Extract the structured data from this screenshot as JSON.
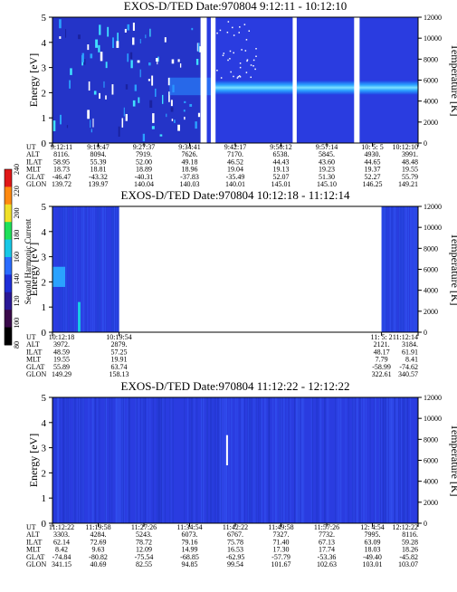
{
  "chart_data": [
    {
      "type": "heatmap",
      "title": "EXOS-D/TED   Date:970804   9:12:11 - 10:12:10",
      "ylabel": "Energy [eV]",
      "y2label": "Temperature [K]",
      "ylim": [
        0,
        5
      ],
      "y2lim": [
        0,
        12000
      ],
      "yticks": [
        "0",
        "1",
        "2",
        "3",
        "4",
        "5"
      ],
      "y2ticks": [
        "0",
        "2000",
        "4000",
        "6000",
        "8000",
        "10000",
        "12000"
      ],
      "gaps": [
        {
          "start": 0.405,
          "end": 0.422
        },
        {
          "start": 0.433,
          "end": 0.446
        },
        {
          "start": 0.657,
          "end": 0.668
        },
        {
          "start": 0.825,
          "end": 0.84
        }
      ],
      "band": {
        "center_energy": 2.2,
        "width_energy": 0.55,
        "start": 0.44
      },
      "row_labels": [
        "UT",
        "ALT",
        "ILAT",
        "MLT",
        "GLAT",
        "GLON"
      ],
      "columns": [
        {
          "values": [
            "9:12:11",
            "8116.",
            "58.95",
            "18.73",
            "-46.47",
            "139.72"
          ]
        },
        {
          "values": [
            "9:19:47",
            "8094.",
            "55.39",
            "18.81",
            "-43.32",
            "139.97"
          ]
        },
        {
          "values": [
            "9:27:37",
            "7919.",
            "52.00",
            "18.89",
            "-40.31",
            "140.04"
          ]
        },
        {
          "values": [
            "9:34:41",
            "7626.",
            "49.18",
            "18.96",
            "-37.83",
            "140.03"
          ]
        },
        {
          "values": [
            "9:42:17",
            "7170.",
            "46.52",
            "19.04",
            "-35.49",
            "140.01"
          ]
        },
        {
          "values": [
            "9:50:12",
            "6538.",
            "44.43",
            "19.13",
            "52.07",
            "145.01"
          ]
        },
        {
          "values": [
            "9:57:14",
            "5845.",
            "43.60",
            "19.23",
            "51.30",
            "145.10"
          ]
        },
        {
          "values": [
            "10: 5: 5",
            "4930.",
            "44.65",
            "19.37",
            "52.27",
            "146.25"
          ]
        },
        {
          "values": [
            "10:12:10",
            "3991.",
            "48.48",
            "19.55",
            "55.79",
            "149.21"
          ]
        }
      ]
    },
    {
      "type": "heatmap",
      "title": "EXOS-D/TED   Date:970804   10:12:18 - 11:12:14",
      "ylabel": "Energy [eV]",
      "y2label": "Temperature [K]",
      "ylim": [
        0,
        5
      ],
      "y2lim": [
        0,
        12000
      ],
      "yticks": [
        "0",
        "1",
        "2",
        "3",
        "4",
        "5"
      ],
      "y2ticks": [
        "0",
        "2000",
        "4000",
        "6000",
        "8000",
        "10000",
        "12000"
      ],
      "data_segments": [
        {
          "start": 0.0,
          "end": 0.182
        },
        {
          "start": 0.9,
          "end": 1.0
        }
      ],
      "row_labels": [
        "UT",
        "ALT",
        "ILAT",
        "MLT",
        "GLAT",
        "GLON"
      ],
      "columns": [
        {
          "values": [
            "10:12:18",
            "3972.",
            "48.59",
            "19.55",
            "55.89",
            "149.29"
          ]
        },
        {
          "values": [
            "10:19:54",
            "2879.",
            "57.25",
            "19.91",
            "63.74",
            "158.13"
          ]
        },
        {
          "values": [
            "11: 5: 2",
            "2121.",
            "48.17",
            "7.79",
            "-58.99",
            "322.61"
          ]
        },
        {
          "values": [
            "11:12:14",
            "3184.",
            "61.91",
            "8.41",
            "-74.62",
            "340.57"
          ]
        }
      ]
    },
    {
      "type": "heatmap",
      "title": "EXOS-D/TED   Date:970804   11:12:22 - 12:12:22",
      "ylabel": "Energy [eV]",
      "y2label": "Temperature [K]",
      "ylim": [
        0,
        5
      ],
      "y2lim": [
        0,
        12000
      ],
      "yticks": [
        "0",
        "1",
        "2",
        "3",
        "4",
        "5"
      ],
      "y2ticks": [
        "0",
        "2000",
        "4000",
        "6000",
        "8000",
        "10000",
        "12000"
      ],
      "row_labels": [
        "UT",
        "ALT",
        "ILAT",
        "MLT",
        "GLAT",
        "GLON"
      ],
      "columns": [
        {
          "values": [
            "11:12:22",
            "3303.",
            "62.14",
            "8.42",
            "-74.84",
            "341.15"
          ]
        },
        {
          "values": [
            "11:19:58",
            "4284.",
            "72.69",
            "9.63",
            "-80.82",
            "40.69"
          ]
        },
        {
          "values": [
            "11:27:26",
            "5243.",
            "78.72",
            "12.09",
            "-75.54",
            "82.55"
          ]
        },
        {
          "values": [
            "11:34:54",
            "6073.",
            "79.16",
            "14.99",
            "-68.85",
            "94.85"
          ]
        },
        {
          "values": [
            "11:42:22",
            "6767.",
            "75.78",
            "16.53",
            "-62.95",
            "99.54"
          ]
        },
        {
          "values": [
            "11:49:58",
            "7327.",
            "71.40",
            "17.30",
            "-57.79",
            "101.67"
          ]
        },
        {
          "values": [
            "11:57:26",
            "7732.",
            "67.13",
            "17.74",
            "-53.36",
            "102.63"
          ]
        },
        {
          "values": [
            "12: 4:54",
            "7995.",
            "63.09",
            "18.03",
            "-49.40",
            "103.01"
          ]
        },
        {
          "values": [
            "12:12:22",
            "8116.",
            "59.28",
            "18.26",
            "-45.82",
            "103.07"
          ]
        }
      ]
    }
  ],
  "colorbar": {
    "label": "Second Harmonic Current",
    "min": 80,
    "max": 240,
    "ticks": [
      "80",
      "100",
      "120",
      "140",
      "160",
      "180",
      "200",
      "220",
      "240"
    ],
    "colors": [
      "#000000",
      "#3a0a4a",
      "#2a1896",
      "#1e2ed8",
      "#2a6cff",
      "#18c8e6",
      "#1ee05a",
      "#f0e028",
      "#ff8a10",
      "#e01818"
    ]
  }
}
